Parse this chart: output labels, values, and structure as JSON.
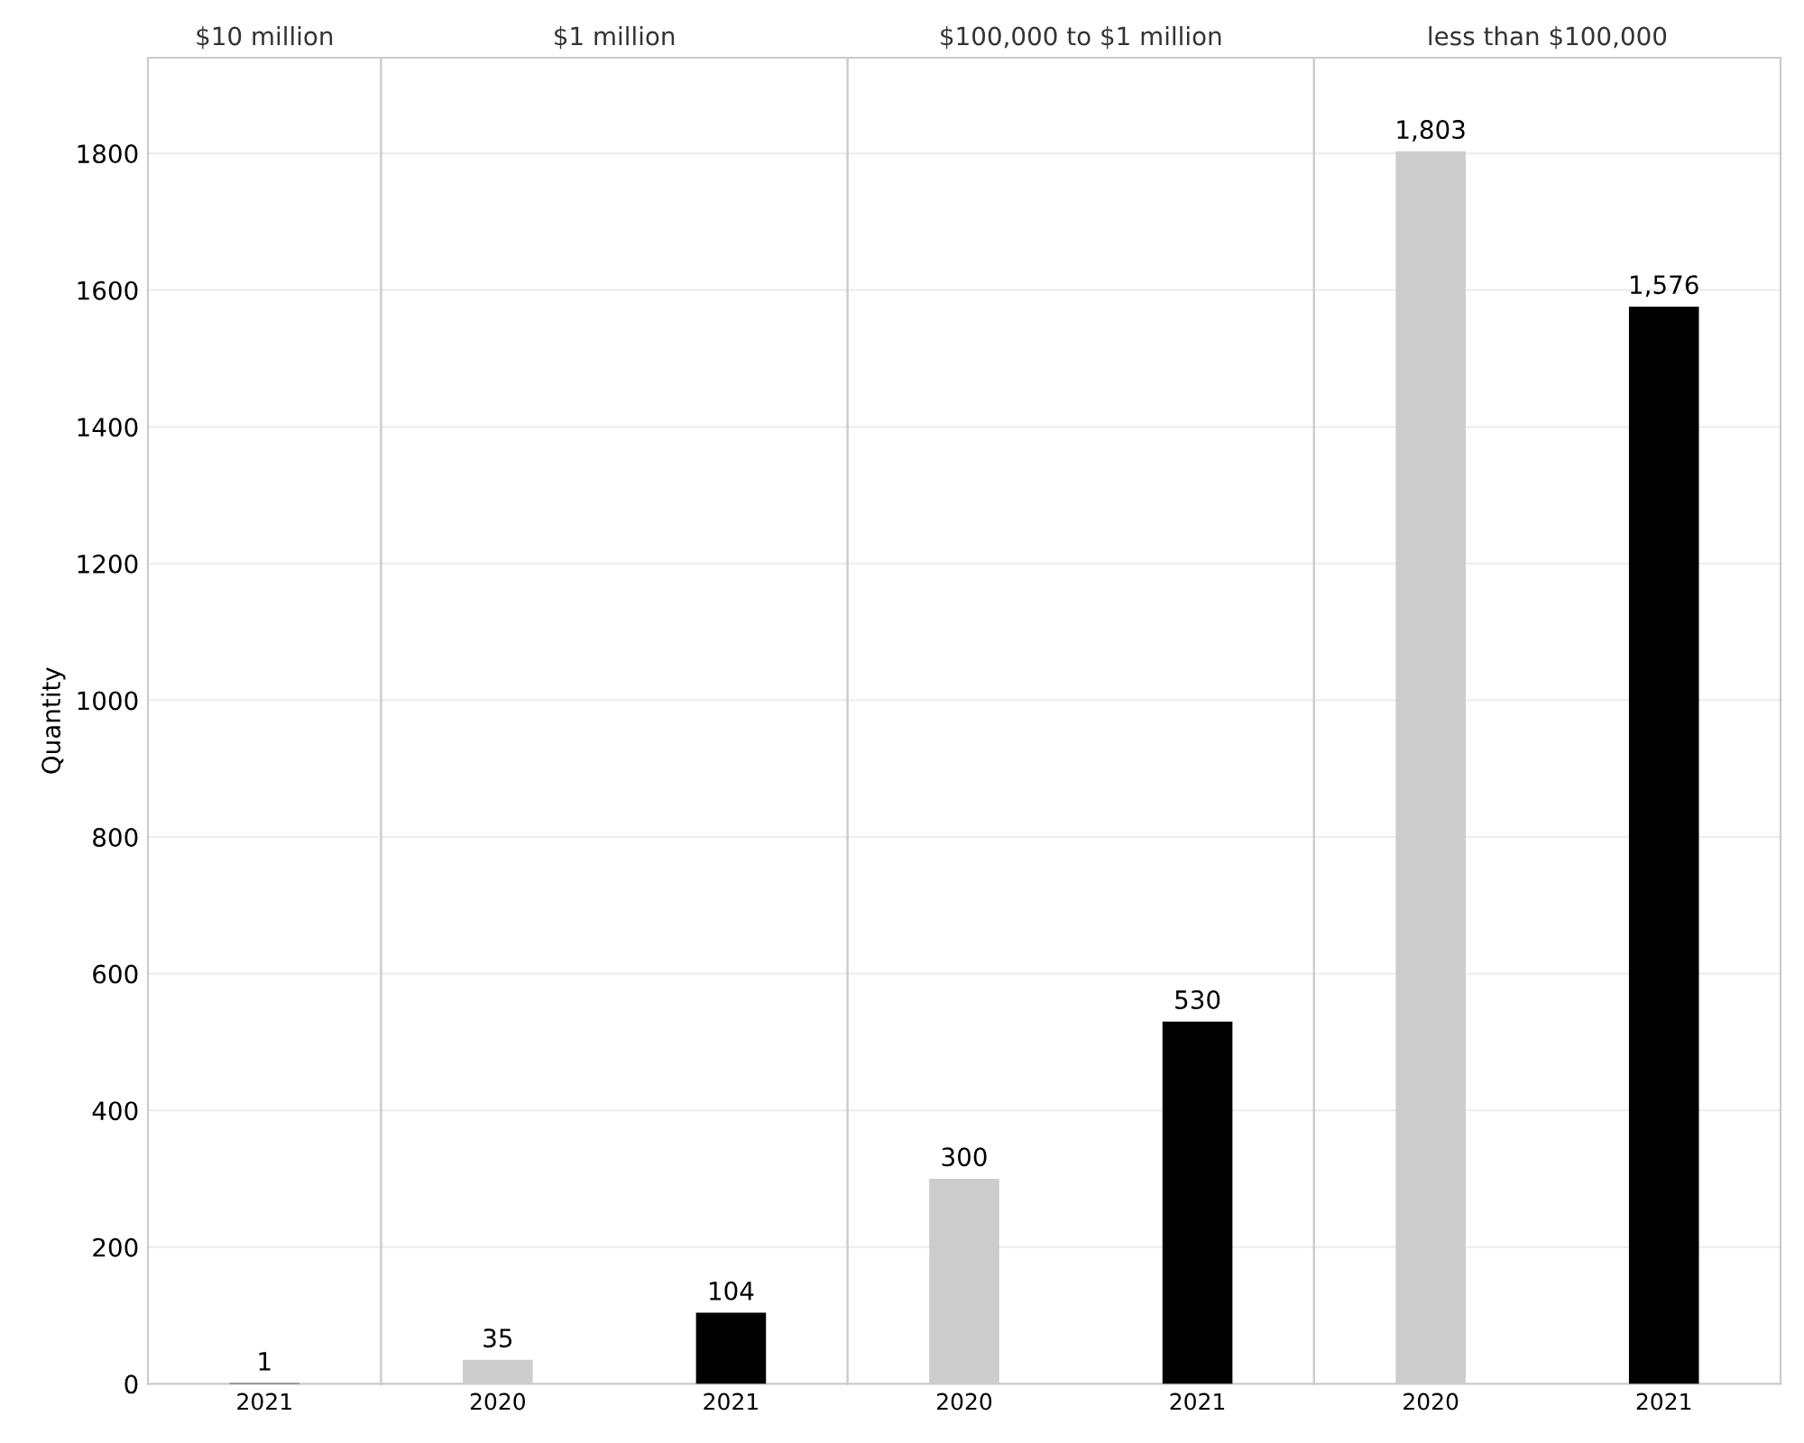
{
  "chart_data": [
    {
      "type": "bar",
      "title": "$10 million",
      "ylabel": "Quantity",
      "categories": [
        "2021"
      ],
      "values": [
        1
      ],
      "colors": [
        "#000000"
      ],
      "value_labels": [
        "1"
      ],
      "ylim": [
        0,
        1940
      ],
      "yticks": [
        0,
        200,
        400,
        600,
        800,
        1000,
        1200,
        1400,
        1600,
        1800
      ],
      "grid": "y"
    },
    {
      "type": "bar",
      "title": "$1 million",
      "categories": [
        "2020",
        "2021"
      ],
      "values": [
        35,
        104
      ],
      "colors": [
        "#cccccc",
        "#000000"
      ],
      "value_labels": [
        "35",
        "104"
      ],
      "ylim": [
        0,
        1940
      ],
      "yticks": [
        0,
        200,
        400,
        600,
        800,
        1000,
        1200,
        1400,
        1600,
        1800
      ],
      "grid": "y",
      "tick_labels": "x"
    },
    {
      "type": "bar",
      "title": "$100,000 to $1 million",
      "categories": [
        "2020",
        "2021"
      ],
      "values": [
        300,
        530
      ],
      "colors": [
        "#cccccc",
        "#000000"
      ],
      "value_labels": [
        "300",
        "530"
      ],
      "ylim": [
        0,
        1940
      ],
      "yticks": [
        0,
        200,
        400,
        600,
        800,
        1000,
        1200,
        1400,
        1600,
        1800
      ],
      "grid": "y",
      "tick_labels": "x"
    },
    {
      "type": "bar",
      "title": "less than $100,000",
      "categories": [
        "2020",
        "2021"
      ],
      "values": [
        1803,
        1576
      ],
      "colors": [
        "#cccccc",
        "#000000"
      ],
      "value_labels": [
        "1,803",
        "1,576"
      ],
      "ylim": [
        0,
        1940
      ],
      "yticks": [
        0,
        200,
        400,
        600,
        800,
        1000,
        1200,
        1400,
        1600,
        1800
      ],
      "grid": "y",
      "tick_labels": "x"
    }
  ]
}
